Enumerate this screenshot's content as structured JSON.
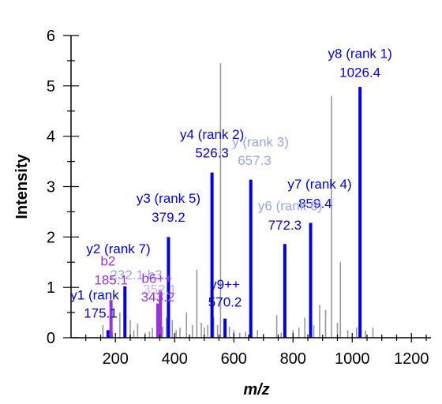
{
  "chart_data": {
    "type": "bar",
    "subtype": "mass-spectrum",
    "xlabel": "m/z",
    "ylabel": "Intensity",
    "xlim": [
      50,
      1250
    ],
    "ylim": [
      0,
      6
    ],
    "x_ticks": [
      200,
      400,
      600,
      800,
      1000,
      1200
    ],
    "y_ticks": [
      0,
      1,
      2,
      3,
      4,
      5,
      6
    ],
    "grid": false,
    "colors": {
      "y_ion": "#0000ee",
      "y_ion_faded": "#9aa6e8",
      "b_ion": "#9933dd",
      "b_ion_faded": "#d2b0ee",
      "unassigned": "#999999",
      "axis": "#000000"
    },
    "unassigned_peaks": [
      {
        "mz": 158,
        "i": 0.25
      },
      {
        "mz": 190,
        "i": 0.12
      },
      {
        "mz": 215,
        "i": 0.5
      },
      {
        "mz": 250,
        "i": 0.35
      },
      {
        "mz": 262,
        "i": 0.15
      },
      {
        "mz": 275,
        "i": 0.28
      },
      {
        "mz": 300,
        "i": 0.1
      },
      {
        "mz": 315,
        "i": 0.12
      },
      {
        "mz": 325,
        "i": 0.2
      },
      {
        "mz": 360,
        "i": 0.22
      },
      {
        "mz": 372,
        "i": 0.4
      },
      {
        "mz": 392,
        "i": 0.35
      },
      {
        "mz": 405,
        "i": 0.15
      },
      {
        "mz": 418,
        "i": 0.2
      },
      {
        "mz": 440,
        "i": 0.5
      },
      {
        "mz": 460,
        "i": 0.25
      },
      {
        "mz": 475,
        "i": 1.35
      },
      {
        "mz": 490,
        "i": 0.3
      },
      {
        "mz": 500,
        "i": 0.2
      },
      {
        "mz": 512,
        "i": 0.25
      },
      {
        "mz": 532,
        "i": 0.4
      },
      {
        "mz": 545,
        "i": 0.25
      },
      {
        "mz": 555,
        "i": 5.45
      },
      {
        "mz": 585,
        "i": 0.22
      },
      {
        "mz": 600,
        "i": 0.15
      },
      {
        "mz": 620,
        "i": 0.1
      },
      {
        "mz": 640,
        "i": 0.12
      },
      {
        "mz": 680,
        "i": 0.15
      },
      {
        "mz": 700,
        "i": 0.08
      },
      {
        "mz": 745,
        "i": 0.45
      },
      {
        "mz": 760,
        "i": 0.1
      },
      {
        "mz": 800,
        "i": 0.15
      },
      {
        "mz": 820,
        "i": 0.2
      },
      {
        "mz": 840,
        "i": 0.4
      },
      {
        "mz": 870,
        "i": 0.25
      },
      {
        "mz": 890,
        "i": 0.65
      },
      {
        "mz": 910,
        "i": 0.55
      },
      {
        "mz": 930,
        "i": 4.8
      },
      {
        "mz": 950,
        "i": 0.3
      },
      {
        "mz": 960,
        "i": 1.5
      },
      {
        "mz": 985,
        "i": 0.15
      },
      {
        "mz": 1015,
        "i": 0.2
      },
      {
        "mz": 1045,
        "i": 0.15
      },
      {
        "mz": 1070,
        "i": 0.2
      }
    ],
    "assigned_peaks": [
      {
        "mz": 175.1,
        "i": 0.15,
        "series": "y_ion"
      },
      {
        "mz": 185.1,
        "i": 0.75,
        "series": "b_ion"
      },
      {
        "mz": 232.1,
        "i": 1.02,
        "series": "y_ion"
      },
      {
        "mz": 343.2,
        "i": 0.68,
        "series": "b_ion"
      },
      {
        "mz": 352.1,
        "i": 0.95,
        "series": "b_ion"
      },
      {
        "mz": 379.2,
        "i": 2.0,
        "series": "y_ion"
      },
      {
        "mz": 526.3,
        "i": 3.28,
        "series": "y_ion"
      },
      {
        "mz": 570.2,
        "i": 0.38,
        "series": "y_ion"
      },
      {
        "mz": 657.3,
        "i": 3.14,
        "series": "y_ion"
      },
      {
        "mz": 772.3,
        "i": 1.86,
        "series": "y_ion"
      },
      {
        "mz": 859.4,
        "i": 2.28,
        "series": "y_ion"
      },
      {
        "mz": 1026.4,
        "i": 4.98,
        "series": "y_ion"
      }
    ],
    "annotations": [
      {
        "text": "y8 (rank 1)",
        "mz": 1026.4,
        "i": 5.55,
        "color": "y_ion"
      },
      {
        "text": "1026.4",
        "mz": 1026.4,
        "i": 5.18,
        "color": "y_ion"
      },
      {
        "text": "y4 (rank 2)",
        "mz": 526.3,
        "i": 3.95,
        "color": "y_ion"
      },
      {
        "text": "526.3",
        "mz": 526.3,
        "i": 3.58,
        "color": "y_ion"
      },
      {
        "text": "y (rank 3)",
        "mz": 690,
        "i": 3.8,
        "color": "y_ion_faded"
      },
      {
        "text": "657.3",
        "mz": 670,
        "i": 3.43,
        "color": "y_ion_faded"
      },
      {
        "text": "y3 (rank 5)",
        "mz": 379.2,
        "i": 2.68,
        "color": "y_ion"
      },
      {
        "text": "379.2",
        "mz": 379.2,
        "i": 2.3,
        "color": "y_ion"
      },
      {
        "text": "y7 (rank 4)",
        "mz": 890,
        "i": 2.96,
        "color": "y_ion"
      },
      {
        "text": "859.4",
        "mz": 875,
        "i": 2.58,
        "color": "y_ion"
      },
      {
        "text": "y6 (rank 6)",
        "mz": 790,
        "i": 2.53,
        "color": "y_ion_faded"
      },
      {
        "text": "772.3",
        "mz": 772.3,
        "i": 2.15,
        "color": "y_ion"
      },
      {
        "text": "y2 (rank 7)",
        "mz": 210,
        "i": 1.68,
        "color": "y_ion"
      },
      {
        "text": "b2",
        "mz": 175,
        "i": 1.43,
        "color": "b_ion"
      },
      {
        "text": "232.1 b3",
        "mz": 270,
        "i": 1.16,
        "color": "y_ion_faded"
      },
      {
        "text": "185.1",
        "mz": 185.1,
        "i": 1.06,
        "color": "b_ion"
      },
      {
        "text": "b6++",
        "mz": 340,
        "i": 1.09,
        "color": "b_ion"
      },
      {
        "text": "352.1",
        "mz": 350,
        "i": 0.87,
        "color": "b_ion_faded"
      },
      {
        "text": "y9++",
        "mz": 570.2,
        "i": 0.97,
        "color": "y_ion"
      },
      {
        "text": "y1 (rank",
        "mz": 130,
        "i": 0.76,
        "color": "y_ion"
      },
      {
        "text": "343.2",
        "mz": 343.2,
        "i": 0.72,
        "color": "b_ion"
      },
      {
        "text": "570.2",
        "mz": 570.2,
        "i": 0.62,
        "color": "y_ion"
      },
      {
        "text": "175.1",
        "mz": 150,
        "i": 0.4,
        "color": "y_ion"
      }
    ]
  }
}
